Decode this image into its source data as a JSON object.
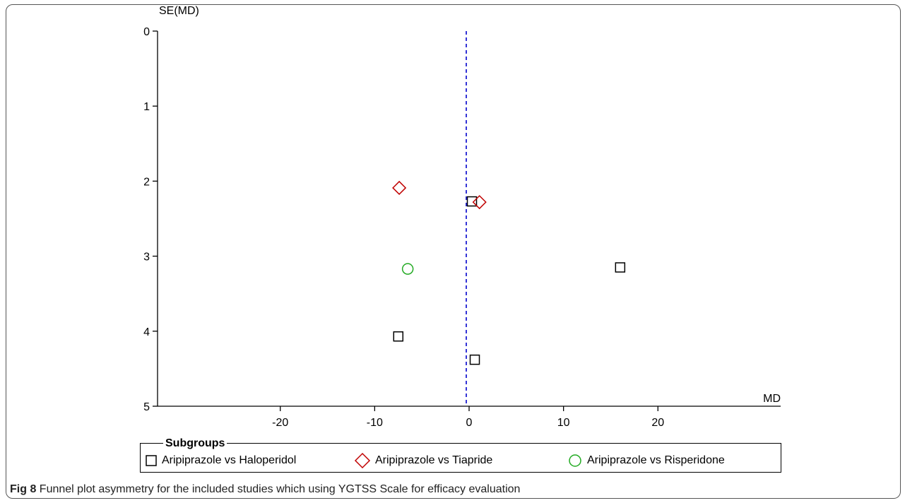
{
  "chart_data": {
    "type": "scatter",
    "xlabel": "MD",
    "ylabel": "SE(MD)",
    "x_ticks": [
      -20,
      -10,
      0,
      10,
      20
    ],
    "y_ticks": [
      0,
      1,
      2,
      3,
      4,
      5
    ],
    "xlim": [
      -33,
      33
    ],
    "ylim": [
      0,
      5
    ],
    "y_reversed": true,
    "reference_line_x": -0.3,
    "series": [
      {
        "name": "Aripiprazole vs Haloperidol",
        "marker": "square",
        "color": "#000000",
        "points": [
          {
            "x": 0.3,
            "y": 2.27
          },
          {
            "x": 16.0,
            "y": 3.15
          },
          {
            "x": -7.5,
            "y": 4.07
          },
          {
            "x": 0.6,
            "y": 4.38
          }
        ]
      },
      {
        "name": "Aripiprazole vs Tiapride",
        "marker": "diamond",
        "color": "#c00000",
        "points": [
          {
            "x": -7.4,
            "y": 2.09
          },
          {
            "x": 1.1,
            "y": 2.28
          }
        ]
      },
      {
        "name": "Aripiprazole vs Risperidone",
        "marker": "circle",
        "color": "#22aa22",
        "points": [
          {
            "x": -6.5,
            "y": 3.17
          }
        ]
      }
    ],
    "reference_line_color": "#0000cc"
  },
  "legend": {
    "title": "Subgroups",
    "items": [
      {
        "label": "Aripiprazole vs Haloperidol",
        "marker": "square",
        "color": "#000000"
      },
      {
        "label": "Aripiprazole vs Tiapride",
        "marker": "diamond",
        "color": "#c00000"
      },
      {
        "label": "Aripiprazole vs Risperidone",
        "marker": "circle",
        "color": "#22aa22"
      }
    ]
  },
  "caption": {
    "label": "Fig 8",
    "text": " Funnel plot asymmetry for the included studies which using YGTSS Scale for efficacy evaluation"
  }
}
